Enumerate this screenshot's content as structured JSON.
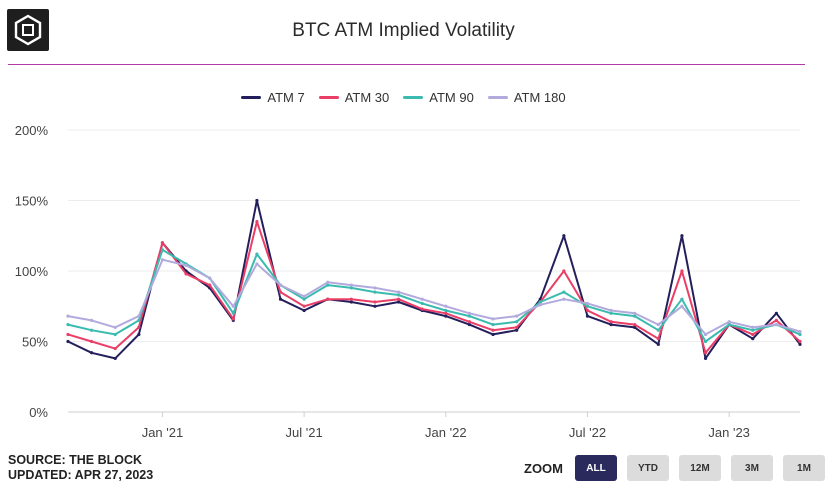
{
  "header": {
    "title": "BTC ATM Implied Volatility",
    "accent_color": "#b13aa8"
  },
  "footer": {
    "source": "SOURCE: THE BLOCK",
    "updated": "UPDATED: APR 27, 2023"
  },
  "zoom": {
    "label": "ZOOM",
    "buttons": [
      "ALL",
      "YTD",
      "12M",
      "3M",
      "1M"
    ],
    "active": "ALL"
  },
  "chart_data": {
    "type": "line",
    "title": "BTC ATM Implied Volatility",
    "xlabel": "",
    "ylabel": "",
    "ylim": [
      0,
      200
    ],
    "yticks": [
      "0%",
      "50%",
      "100%",
      "150%",
      "200%"
    ],
    "xticks": [
      "Jan '21",
      "Jul '21",
      "Jan '22",
      "Jul '22",
      "Jan '23"
    ],
    "legend_position": "top-center",
    "x": [
      "Sep '20",
      "Oct '20",
      "Nov '20",
      "Dec '20",
      "Jan '21",
      "Feb '21",
      "Mar '21",
      "Apr '21",
      "May '21",
      "Jun '21",
      "Jul '21",
      "Aug '21",
      "Sep '21",
      "Oct '21",
      "Nov '21",
      "Dec '21",
      "Jan '22",
      "Feb '22",
      "Mar '22",
      "Apr '22",
      "May '22",
      "Jun '22",
      "Jul '22",
      "Aug '22",
      "Sep '22",
      "Oct '22",
      "Nov '22",
      "Dec '22",
      "Jan '23",
      "Feb '23",
      "Mar '23",
      "Apr '23"
    ],
    "series": [
      {
        "name": "ATM 7",
        "color": "#231f5c",
        "values": [
          50,
          42,
          38,
          55,
          120,
          100,
          88,
          65,
          150,
          80,
          72,
          80,
          78,
          75,
          78,
          72,
          68,
          62,
          55,
          58,
          80,
          125,
          68,
          62,
          60,
          48,
          125,
          38,
          62,
          52,
          70,
          48
        ]
      },
      {
        "name": "ATM 30",
        "color": "#ea3e66",
        "values": [
          55,
          50,
          45,
          60,
          120,
          98,
          90,
          66,
          135,
          85,
          75,
          80,
          80,
          78,
          80,
          73,
          70,
          64,
          58,
          60,
          78,
          100,
          72,
          64,
          62,
          52,
          100,
          42,
          62,
          55,
          65,
          50
        ]
      },
      {
        "name": "ATM 90",
        "color": "#3bbbb0",
        "values": [
          62,
          58,
          55,
          65,
          115,
          105,
          95,
          70,
          112,
          90,
          80,
          90,
          88,
          85,
          83,
          77,
          72,
          68,
          62,
          64,
          78,
          85,
          75,
          70,
          68,
          58,
          80,
          50,
          62,
          58,
          62,
          55
        ]
      },
      {
        "name": "ATM 180",
        "color": "#b2aadd",
        "values": [
          68,
          65,
          60,
          68,
          108,
          104,
          95,
          75,
          105,
          90,
          82,
          92,
          90,
          88,
          85,
          80,
          75,
          70,
          66,
          68,
          76,
          80,
          77,
          72,
          70,
          62,
          75,
          55,
          64,
          60,
          62,
          57
        ]
      }
    ]
  }
}
